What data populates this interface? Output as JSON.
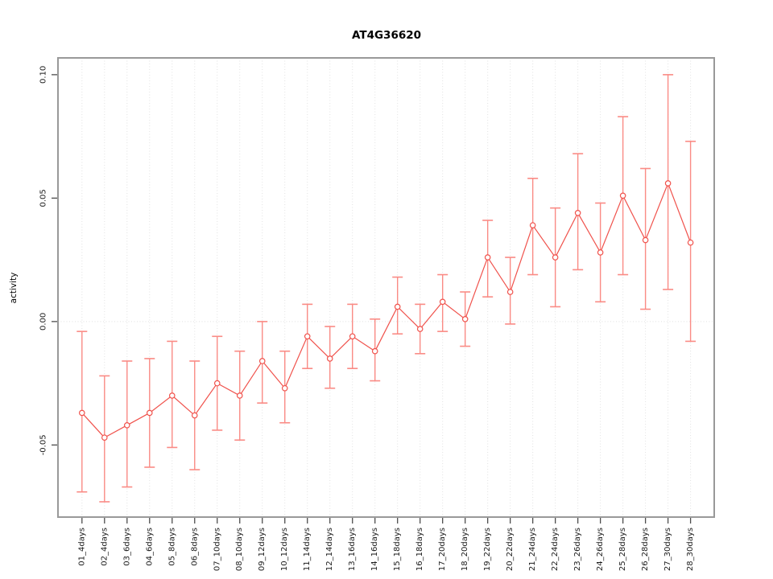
{
  "chart_data": {
    "type": "line",
    "title": "AT4G36620",
    "xlabel": "",
    "ylabel": "activity",
    "categories": [
      "01_4days",
      "02_4days",
      "03_6days",
      "04_6days",
      "05_8days",
      "06_8days",
      "07_10days",
      "08_10days",
      "09_12days",
      "10_12days",
      "11_14days",
      "12_14days",
      "13_16days",
      "14_16days",
      "15_18days",
      "16_18days",
      "17_20days",
      "18_20days",
      "19_22days",
      "20_22days",
      "21_24days",
      "22_24days",
      "23_26days",
      "24_26days",
      "25_28days",
      "26_28days",
      "27_30days",
      "28_30days"
    ],
    "series": [
      {
        "name": "activity",
        "marker": "open-circle",
        "means": [
          -0.037,
          -0.047,
          -0.042,
          -0.037,
          -0.03,
          -0.038,
          -0.025,
          -0.03,
          -0.016,
          -0.027,
          -0.006,
          -0.015,
          -0.006,
          -0.012,
          0.006,
          -0.003,
          0.008,
          0.001,
          0.026,
          0.012,
          0.039,
          0.026,
          0.044,
          0.028,
          0.051,
          0.033,
          0.056,
          0.032
        ],
        "upper": [
          -0.004,
          -0.022,
          -0.016,
          -0.015,
          -0.008,
          -0.016,
          -0.006,
          -0.012,
          0.0,
          -0.012,
          0.007,
          -0.002,
          0.007,
          0.001,
          0.018,
          0.007,
          0.019,
          0.012,
          0.041,
          0.026,
          0.058,
          0.046,
          0.068,
          0.048,
          0.083,
          0.062,
          0.1,
          0.073
        ],
        "lower": [
          -0.069,
          -0.073,
          -0.067,
          -0.059,
          -0.051,
          -0.06,
          -0.044,
          -0.048,
          -0.033,
          -0.041,
          -0.019,
          -0.027,
          -0.019,
          -0.024,
          -0.005,
          -0.013,
          -0.004,
          -0.01,
          0.01,
          -0.001,
          0.019,
          0.006,
          0.021,
          0.008,
          0.019,
          0.005,
          0.013,
          -0.008
        ]
      }
    ],
    "ylim": [
      -0.0792,
      0.1068
    ],
    "yticks": [
      -0.05,
      0.0,
      0.05,
      0.1
    ],
    "ytick_labels": [
      "-0.05",
      "0.00",
      "0.05",
      "0.10"
    ],
    "grid": {
      "vertical": "dotted",
      "zero_line": "dotted"
    },
    "legend": "none",
    "colors": {
      "point_line": "#f0524c",
      "error_bar": "#fa8b85",
      "gridline": "#e2e2e2",
      "zero_line": "#e0e0e0",
      "box": "#999999",
      "tick": "#4d4d4d",
      "point_fill": "#ffffff"
    }
  }
}
